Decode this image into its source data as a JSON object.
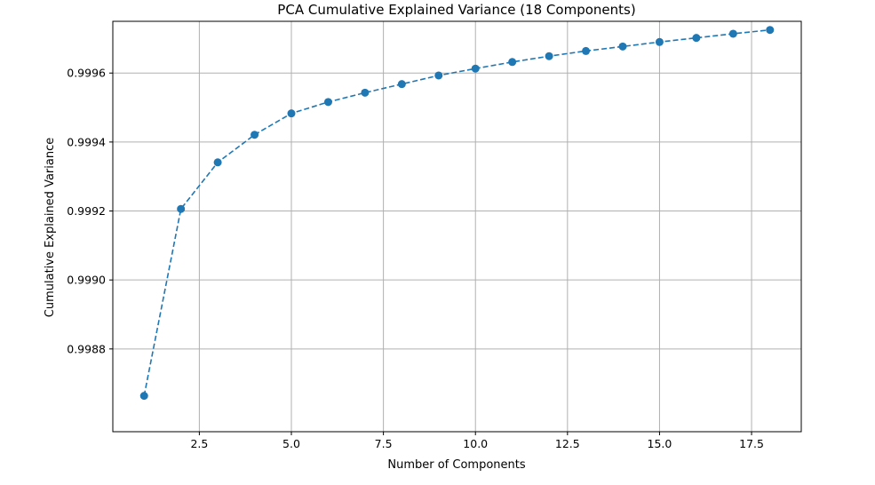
{
  "chart_data": {
    "type": "line",
    "title": "PCA Cumulative Explained Variance (18 Components)",
    "xlabel": "Number of Components",
    "ylabel": "Cumulative Explained Variance",
    "xlim": [
      0.15,
      18.85
    ],
    "ylim": [
      0.99856,
      0.99975
    ],
    "x_ticks": [
      2.5,
      5.0,
      7.5,
      10.0,
      12.5,
      15.0,
      17.5
    ],
    "x_tick_labels": [
      "2.5",
      "5.0",
      "7.5",
      "10.0",
      "12.5",
      "15.0",
      "17.5"
    ],
    "y_ticks": [
      0.9988,
      0.999,
      0.9992,
      0.9994,
      0.9996
    ],
    "y_tick_labels": [
      "0.9988",
      "0.9990",
      "0.9992",
      "0.9994",
      "0.9996"
    ],
    "grid": true,
    "series": [
      {
        "x": [
          1,
          2,
          3,
          4,
          5,
          6,
          7,
          8,
          9,
          10,
          11,
          12,
          13,
          14,
          15,
          16,
          17,
          18
        ],
        "values": [
          0.998664,
          0.999206,
          0.999341,
          0.999421,
          0.999483,
          0.999516,
          0.999543,
          0.999568,
          0.999593,
          0.999613,
          0.999632,
          0.999649,
          0.999664,
          0.999677,
          0.99969,
          0.999702,
          0.999714,
          0.999725
        ],
        "color": "#1f77b4",
        "line_style": "dashed",
        "marker": "circle"
      }
    ]
  }
}
